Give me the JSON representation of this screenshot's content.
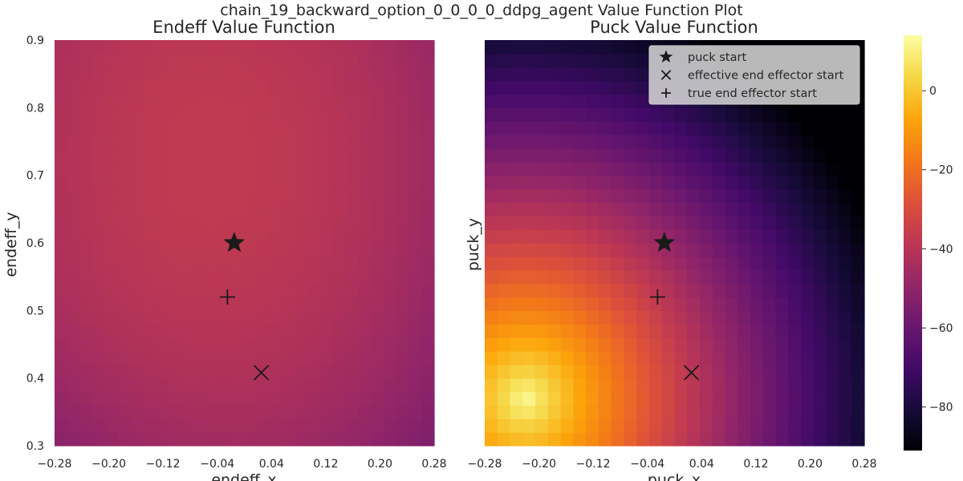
{
  "figure": {
    "suptitle": "chain_19_backward_option_0_0_0_0_ddpg_agent Value Function Plot"
  },
  "chart_data": [
    {
      "type": "heatmap",
      "title": "Endeff Value Function",
      "xlabel": "endeff_x",
      "ylabel": "endeff_y",
      "xlim": [
        -0.28,
        0.28
      ],
      "ylim": [
        0.3,
        0.9
      ],
      "xticks": [
        "−0.28",
        "−0.20",
        "−0.12",
        "−0.04",
        "0.04",
        "0.12",
        "0.20",
        "0.28"
      ],
      "yticks": [
        "0.3",
        "0.4",
        "0.5",
        "0.6",
        "0.7",
        "0.8",
        "0.9"
      ],
      "grid": {
        "nx": 30,
        "ny": 30
      },
      "value_model": {
        "kind": "smooth",
        "description": "values mostly between -55 and -35, highest (~-37) around x -0.05, y 0.72; lowest (~-58) at bottom-left corner"
      },
      "markers": [
        {
          "label": "puck start",
          "symbol": "star",
          "x": -0.015,
          "y": 0.6
        },
        {
          "label": "effective end effector start",
          "symbol": "x",
          "x": 0.025,
          "y": 0.408
        },
        {
          "label": "true end effector start",
          "symbol": "plus",
          "x": -0.025,
          "y": 0.52
        }
      ]
    },
    {
      "type": "heatmap",
      "title": "Puck Value Function",
      "xlabel": "puck_x",
      "ylabel": "puck_y",
      "xlim": [
        -0.28,
        0.28
      ],
      "ylim": [
        0.3,
        0.9
      ],
      "xticks": [
        "−0.28",
        "−0.20",
        "−0.12",
        "−0.04",
        "0.04",
        "0.12",
        "0.20",
        "0.28"
      ],
      "yticks": [],
      "grid": {
        "nx": 30,
        "ny": 30
      },
      "value_model": {
        "kind": "radial",
        "description": "maximum (~13) near x -0.22, y 0.37, decreasing outward to about -90 at the top-right corner"
      },
      "markers": [
        {
          "label": "puck start",
          "symbol": "star",
          "x": -0.015,
          "y": 0.6
        },
        {
          "label": "effective end effector start",
          "symbol": "x",
          "x": 0.025,
          "y": 0.408
        },
        {
          "label": "true end effector start",
          "symbol": "plus",
          "x": -0.025,
          "y": 0.52
        }
      ],
      "legend": {
        "position": "upper right",
        "entries": [
          {
            "label": "puck start",
            "symbol": "star"
          },
          {
            "label": "effective end effector start",
            "symbol": "x"
          },
          {
            "label": "true end effector start",
            "symbol": "plus"
          }
        ]
      }
    }
  ],
  "colorbar": {
    "colormap": "inferno",
    "vmin": -91,
    "vmax": 14,
    "ticks": [
      {
        "value": 0,
        "label": "0"
      },
      {
        "value": -20,
        "label": "−20"
      },
      {
        "value": -40,
        "label": "−40"
      },
      {
        "value": -60,
        "label": "−60"
      },
      {
        "value": -80,
        "label": "−80"
      }
    ]
  }
}
